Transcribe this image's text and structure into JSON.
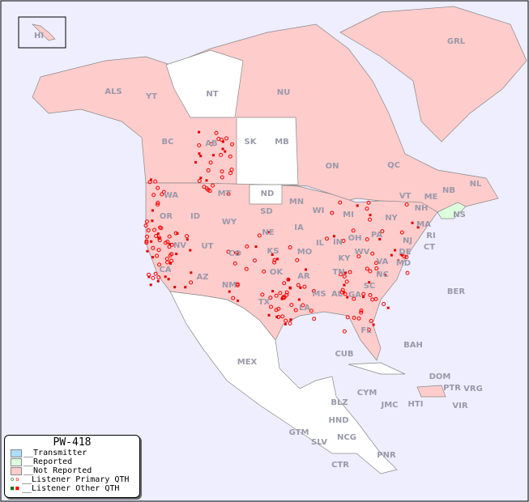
{
  "map": {
    "colors": {
      "ocean": "#eeeeff",
      "not_reported": "#ffcccc",
      "reported": "#ddffdd",
      "transmitter": "#aaddff",
      "unlisted": "#ffffff",
      "border": "#888888",
      "dot": "#ff0000"
    },
    "labels": [
      "HI",
      "ALS",
      "YT",
      "NT",
      "NU",
      "GRL",
      "BC",
      "AB",
      "SK",
      "MB",
      "ON",
      "QC",
      "NL",
      "NS",
      "NB",
      "WA",
      "OR",
      "ID",
      "MT",
      "ND",
      "MN",
      "WI",
      "MI",
      "NY",
      "VT",
      "NH",
      "ME",
      "MA",
      "RI",
      "CT",
      "NJ",
      "PA",
      "DE",
      "MD",
      "VA",
      "WV",
      "OH",
      "IN",
      "IL",
      "KY",
      "TN",
      "NC",
      "SC",
      "GA",
      "FL",
      "AL",
      "MS",
      "LA",
      "AR",
      "MO",
      "IA",
      "NE",
      "SD",
      "WY",
      "UT",
      "CO",
      "KS",
      "OK",
      "TX",
      "NM",
      "AZ",
      "NV",
      "CA",
      "MEX",
      "CUB",
      "BAH",
      "BER",
      "DOM",
      "PTR",
      "VRG",
      "VIR",
      "HTI",
      "JMC",
      "CYM",
      "BLZ",
      "HND",
      "GTM",
      "SLV",
      "NCG",
      "CTR",
      "PNR"
    ]
  },
  "legend": {
    "title": "PW-418",
    "items": [
      {
        "label": "__Transmitter",
        "color": "#aaddff"
      },
      {
        "label": "__Reported",
        "color": "#ddffdd"
      },
      {
        "label": "__Not Reported",
        "color": "#ffcccc"
      },
      {
        "label": "__Listener Primary QTH",
        "icon": "open-circle-icon"
      },
      {
        "label": "__Listener Other QTH",
        "icon": "square-dot-icon"
      }
    ]
  }
}
